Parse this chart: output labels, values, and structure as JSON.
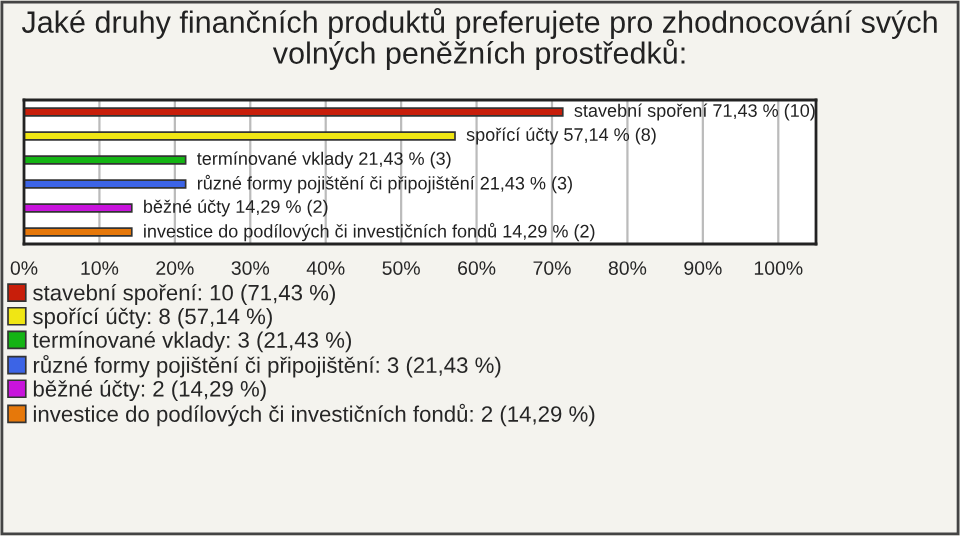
{
  "chart_data": {
    "type": "bar",
    "orientation": "horizontal",
    "title": "Jaké druhy finančních produktů preferujete pro zhodnocování svých volných peněžních prostředků:",
    "categories": [
      null,
      null,
      null,
      null,
      null,
      null
    ],
    "series": [
      {
        "name": "stavební spoření: 10 (71,43 %)",
        "color": "#c81e0a",
        "values": [
          71.43,
          null,
          null,
          null,
          null,
          null
        ],
        "value_labels": [
          "stavební spoření 71,43 % (10)",
          null,
          null,
          null,
          null,
          null
        ]
      },
      {
        "name": "spořící účty: 8 (57,14 %)",
        "color": "#f0e614",
        "values": [
          null,
          57.14,
          null,
          null,
          null,
          null
        ],
        "value_labels": [
          null,
          "spořící účty 57,14 % (8)",
          null,
          null,
          null,
          null
        ]
      },
      {
        "name": "termínované vklady: 3 (21,43 %)",
        "color": "#14b414",
        "values": [
          null,
          null,
          21.43,
          null,
          null,
          null
        ],
        "value_labels": [
          null,
          null,
          "termínované vklady 21,43 % (3)",
          null,
          null,
          null
        ]
      },
      {
        "name": "různé formy pojištění či připojištění: 3 (21,43 %)",
        "color": "#3c64e6",
        "values": [
          null,
          null,
          null,
          21.43,
          null,
          null
        ],
        "value_labels": [
          null,
          null,
          null,
          "různé formy pojištění či připojištění 21,43 % (3)",
          null,
          null
        ]
      },
      {
        "name": "běžné účty: 2 (14,29 %)",
        "color": "#c814dc",
        "values": [
          null,
          null,
          null,
          null,
          14.29,
          null
        ],
        "value_labels": [
          null,
          null,
          null,
          null,
          "běžné účty 14,29 % (2)",
          null
        ]
      },
      {
        "name": "investice do podílových či investičních fondů: 2 (14,29 %)",
        "color": "#e6780a",
        "values": [
          null,
          null,
          null,
          null,
          null,
          14.29
        ],
        "value_labels": [
          null,
          null,
          null,
          null,
          null,
          "investice do podílových či investičních fondů 14,29 % (2)"
        ]
      }
    ],
    "xlim": [
      0,
      105
    ],
    "xticks": [
      {
        "value": 0,
        "label": "0%"
      },
      {
        "value": 10,
        "label": "10%"
      },
      {
        "value": 20,
        "label": "20%"
      },
      {
        "value": 30,
        "label": "30%"
      },
      {
        "value": 40,
        "label": "40%"
      },
      {
        "value": 50,
        "label": "50%"
      },
      {
        "value": 60,
        "label": "60%"
      },
      {
        "value": 70,
        "label": "70%"
      },
      {
        "value": 80,
        "label": "80%"
      },
      {
        "value": 90,
        "label": "90%"
      },
      {
        "value": 100,
        "label": "100%"
      }
    ],
    "grid": "x",
    "legend": "bottom"
  }
}
